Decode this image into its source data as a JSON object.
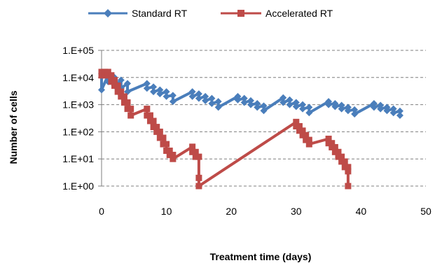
{
  "chart_data": {
    "type": "line",
    "title": "",
    "xlabel": "Treatment time (days)",
    "ylabel": "Number of cells",
    "xlim": [
      0,
      50
    ],
    "ylim": [
      1,
      100000
    ],
    "yscale": "log",
    "x_ticks": [
      0,
      10,
      20,
      30,
      40,
      50
    ],
    "x_tick_labels": [
      "0",
      "10",
      "20",
      "30",
      "40",
      "50"
    ],
    "y_ticks": [
      1,
      10,
      100,
      1000,
      10000,
      100000
    ],
    "y_tick_labels": [
      "1.E+00",
      "1.E+01",
      "1.E+02",
      "1.E+03",
      "1.E+04",
      "1.E+05"
    ],
    "grid": "horizontal dashed",
    "legend_position": "top",
    "series": [
      {
        "name": "Standard RT",
        "color": "#4a7ebb",
        "marker": "diamond",
        "points": [
          [
            0,
            14000
          ],
          [
            0,
            3500
          ],
          [
            1,
            12000
          ],
          [
            1,
            7000
          ],
          [
            2,
            10000
          ],
          [
            2,
            5000
          ],
          [
            3,
            8000
          ],
          [
            3,
            4000
          ],
          [
            4,
            6000
          ],
          [
            4,
            3000
          ],
          [
            7,
            6000
          ],
          [
            7,
            4000
          ],
          [
            8,
            4500
          ],
          [
            8,
            3000
          ],
          [
            9,
            3500
          ],
          [
            9,
            2500
          ],
          [
            10,
            3000
          ],
          [
            10,
            2000
          ],
          [
            11,
            2200
          ],
          [
            11,
            1300
          ],
          [
            14,
            3000
          ],
          [
            14,
            2000
          ],
          [
            15,
            2500
          ],
          [
            15,
            1700
          ],
          [
            16,
            2000
          ],
          [
            16,
            1400
          ],
          [
            17,
            1700
          ],
          [
            17,
            1100
          ],
          [
            18,
            1300
          ],
          [
            18,
            800
          ],
          [
            21,
            2000
          ],
          [
            21,
            1500
          ],
          [
            22,
            1700
          ],
          [
            22,
            1200
          ],
          [
            23,
            1400
          ],
          [
            23,
            1000
          ],
          [
            24,
            1100
          ],
          [
            24,
            800
          ],
          [
            25,
            900
          ],
          [
            25,
            600
          ],
          [
            28,
            1800
          ],
          [
            28,
            1200
          ],
          [
            29,
            1500
          ],
          [
            29,
            1000
          ],
          [
            30,
            1200
          ],
          [
            30,
            850
          ],
          [
            31,
            1000
          ],
          [
            31,
            700
          ],
          [
            32,
            800
          ],
          [
            32,
            500
          ],
          [
            35,
            1300
          ],
          [
            35,
            1000
          ],
          [
            36,
            1100
          ],
          [
            36,
            850
          ],
          [
            37,
            950
          ],
          [
            37,
            700
          ],
          [
            38,
            800
          ],
          [
            38,
            600
          ],
          [
            39,
            650
          ],
          [
            39,
            450
          ],
          [
            42,
            1100
          ],
          [
            42,
            800
          ],
          [
            43,
            950
          ],
          [
            43,
            700
          ],
          [
            44,
            800
          ],
          [
            44,
            600
          ],
          [
            45,
            700
          ],
          [
            45,
            500
          ],
          [
            46,
            580
          ],
          [
            46,
            400
          ]
        ]
      },
      {
        "name": "Accelerated RT",
        "color": "#be4b48",
        "marker": "square",
        "points": [
          [
            0,
            16000
          ],
          [
            0,
            12000
          ],
          [
            0.5,
            16000
          ],
          [
            0.5,
            12000
          ],
          [
            1,
            16000
          ],
          [
            1,
            12000
          ],
          [
            1.5,
            12000
          ],
          [
            1.5,
            7000
          ],
          [
            2,
            8000
          ],
          [
            2,
            5000
          ],
          [
            2.5,
            5000
          ],
          [
            2.5,
            3000
          ],
          [
            3,
            3000
          ],
          [
            3,
            2000
          ],
          [
            3.5,
            2000
          ],
          [
            3.5,
            1200
          ],
          [
            4,
            1200
          ],
          [
            4,
            700
          ],
          [
            4.5,
            700
          ],
          [
            4.5,
            400
          ],
          [
            7,
            700
          ],
          [
            7,
            400
          ],
          [
            7.5,
            400
          ],
          [
            7.5,
            250
          ],
          [
            8,
            250
          ],
          [
            8,
            150
          ],
          [
            8.5,
            150
          ],
          [
            8.5,
            100
          ],
          [
            9,
            100
          ],
          [
            9,
            60
          ],
          [
            9.5,
            60
          ],
          [
            9.5,
            35
          ],
          [
            10,
            35
          ],
          [
            10,
            20
          ],
          [
            10.5,
            20
          ],
          [
            10.5,
            14
          ],
          [
            11,
            14
          ],
          [
            11,
            10
          ],
          [
            14,
            28
          ],
          [
            14,
            18
          ],
          [
            14.5,
            18
          ],
          [
            14.5,
            12
          ],
          [
            15,
            12
          ],
          [
            15,
            2
          ],
          [
            15,
            1
          ],
          [
            30,
            230
          ],
          [
            30,
            160
          ],
          [
            30.5,
            160
          ],
          [
            30.5,
            110
          ],
          [
            31,
            110
          ],
          [
            31,
            75
          ],
          [
            31.5,
            75
          ],
          [
            31.5,
            50
          ],
          [
            32,
            50
          ],
          [
            32,
            35
          ],
          [
            35,
            55
          ],
          [
            35,
            38
          ],
          [
            35.5,
            38
          ],
          [
            35.5,
            27
          ],
          [
            36,
            27
          ],
          [
            36,
            18
          ],
          [
            36.5,
            18
          ],
          [
            36.5,
            12
          ],
          [
            37,
            12
          ],
          [
            37,
            8
          ],
          [
            37.5,
            8
          ],
          [
            37.5,
            5
          ],
          [
            38,
            5
          ],
          [
            38,
            3.5
          ],
          [
            38,
            1
          ]
        ]
      }
    ]
  }
}
